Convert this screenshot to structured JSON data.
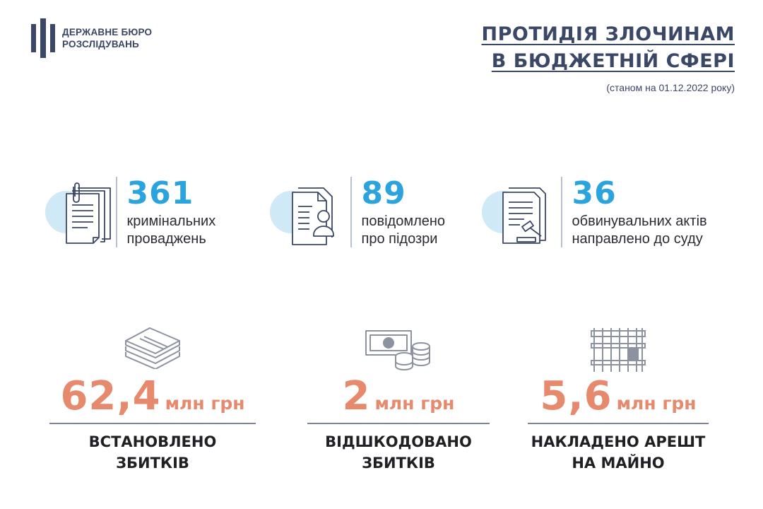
{
  "header": {
    "org_line1": "ДЕРЖАВНЕ БЮРО",
    "org_line2": "РОЗСЛІДУВАНЬ",
    "title_line1": "ПРОТИДІЯ ЗЛОЧИНАМ",
    "title_line2": "В БЮДЖЕТНІЙ СФЕРІ",
    "date_note": "(станом на 01.12.2022 року)"
  },
  "stats": [
    {
      "number": "361",
      "label_line1": "кримінальних",
      "label_line2": "проваджень",
      "icon": "documents-icon"
    },
    {
      "number": "89",
      "label_line1": "повідомлено",
      "label_line2": "про підозри",
      "icon": "suspect-document-icon"
    },
    {
      "number": "36",
      "label_line1": "обвинувальних актів",
      "label_line2": "направлено до суду",
      "icon": "court-document-icon"
    }
  ],
  "amounts": [
    {
      "value": "62,4",
      "unit": "млн грн",
      "caption_line1": "ВСТАНОВЛЕНО",
      "caption_line2": "ЗБИТКІВ",
      "icon": "money-stack-icon"
    },
    {
      "value": "2",
      "unit": "млн грн",
      "caption_line1": "ВІДШКОДОВАНО",
      "caption_line2": "ЗБИТКІВ",
      "icon": "banknote-coins-icon"
    },
    {
      "value": "5,6",
      "unit": "млн грн",
      "caption_line1": "НАКЛАДЕНО АРЕШТ",
      "caption_line2": "НА МАЙНО",
      "icon": "prison-bars-icon"
    }
  ],
  "colors": {
    "accent_blue": "#2ba3dc",
    "accent_orange": "#e6896c",
    "navy": "#3b4767",
    "circle": "#cfe9f7"
  }
}
